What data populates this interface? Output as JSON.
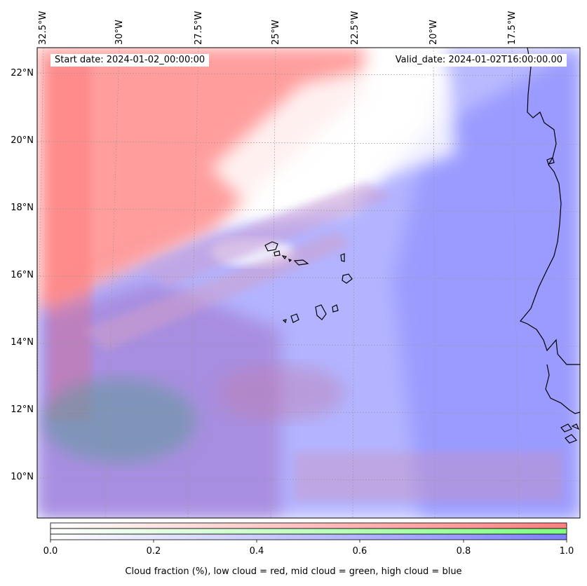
{
  "annotations": {
    "start_date": "Start date: 2024-01-02_00:00:00",
    "valid_date": "Valid_date: 2024-01-02T16:00:00.00"
  },
  "map": {
    "lon_labels": [
      "32.5°W",
      "30°W",
      "27.5°W",
      "25°W",
      "22.5°W",
      "20°W",
      "17.5°W"
    ],
    "lat_labels": [
      "22°N",
      "20°N",
      "18°N",
      "16°N",
      "14°N",
      "12°N",
      "10°N"
    ],
    "coastline_color": "#000000",
    "gridlines": true
  },
  "colorbar": {
    "ticks": [
      "0.0",
      "0.2",
      "0.4",
      "0.6",
      "0.8",
      "1.0"
    ],
    "label": "Cloud fraction (%), low cloud = red, mid cloud = green, high cloud = blue",
    "colors": {
      "low": "#ff7f7f",
      "mid": "#7fff7f",
      "high": "#7f7fff"
    }
  }
}
